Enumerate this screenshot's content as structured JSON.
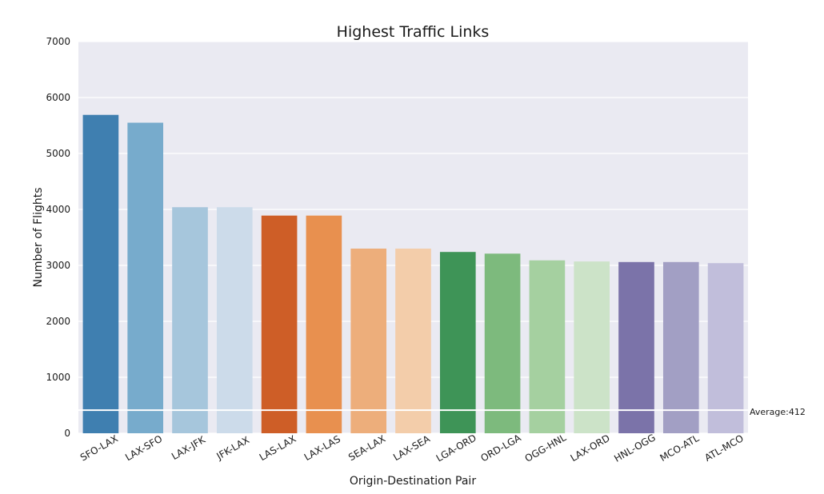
{
  "chart_data": {
    "type": "bar",
    "title": "Highest Traffic Links",
    "xlabel": "Origin-Destination Pair",
    "ylabel": "Number of Flights",
    "ylim": [
      0,
      7000
    ],
    "yticks": [
      0,
      1000,
      2000,
      3000,
      4000,
      5000,
      6000,
      7000
    ],
    "grid": true,
    "background": "#eaeaf2",
    "categories": [
      "SFO-LAX",
      "LAX-SFO",
      "LAX-JFK",
      "JFK-LAX",
      "LAS-LAX",
      "LAX-LAS",
      "SEA-LAX",
      "LAX-SEA",
      "LGA-ORD",
      "ORD-LGA",
      "OGG-HNL",
      "LAX-ORD",
      "HNL-OGG",
      "MCO-ATL",
      "ATL-MCO"
    ],
    "values": [
      5690,
      5550,
      4040,
      4040,
      3890,
      3890,
      3300,
      3300,
      3240,
      3210,
      3090,
      3070,
      3060,
      3060,
      3040
    ],
    "colors": [
      "#3f7fb0",
      "#77abcc",
      "#a6c6dc",
      "#ccdbea",
      "#ce5e27",
      "#e8904f",
      "#edae7b",
      "#f3cdaa",
      "#3e9457",
      "#7dba7d",
      "#a5d0a0",
      "#cce3c8",
      "#7b73a9",
      "#a29fc4",
      "#c1bedb"
    ],
    "average": {
      "value": 412,
      "label": "Average:412",
      "color": "#ffffff"
    }
  }
}
